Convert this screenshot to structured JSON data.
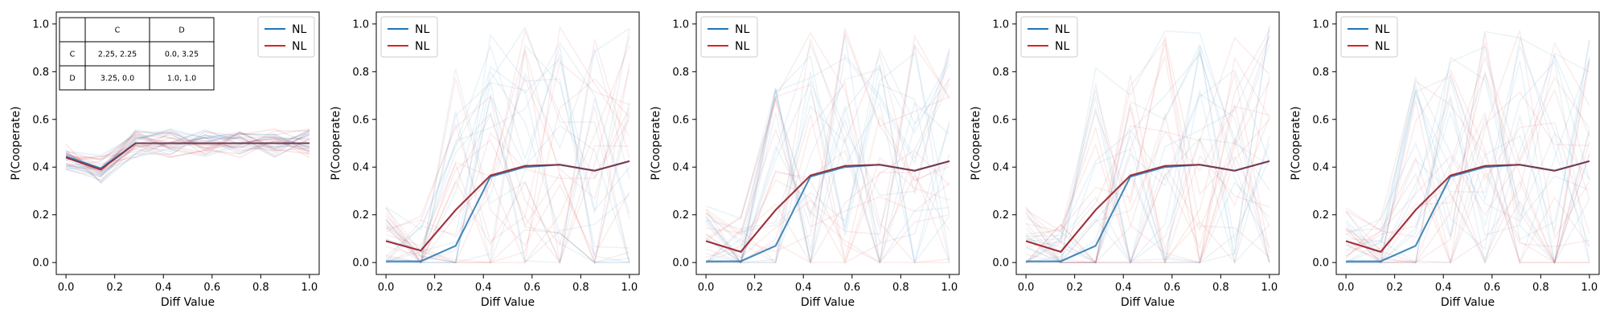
{
  "chart_data": [
    {
      "type": "line",
      "xlabel": "Diff Value",
      "ylabel": "P(Cooperate)",
      "xlim": [
        -0.04,
        1.04
      ],
      "ylim": [
        -0.05,
        1.05
      ],
      "xticks": [
        "0.0",
        "0.2",
        "0.4",
        "0.6",
        "0.8",
        "1.0"
      ],
      "yticks": [
        "0.0",
        "0.2",
        "0.4",
        "0.6",
        "0.8",
        "1.0"
      ],
      "x": [
        0.0,
        0.143,
        0.286,
        0.429,
        0.571,
        0.714,
        0.857,
        1.0
      ],
      "legend_position": "top-right",
      "legend": [
        {
          "name": "NL",
          "color": "#1f77b4"
        },
        {
          "name": "NL",
          "color": "#d62728"
        }
      ],
      "series": [
        {
          "color": "#d62728",
          "values": [
            0.44,
            0.39,
            0.5,
            0.5,
            0.5,
            0.5,
            0.5,
            0.5
          ]
        },
        {
          "color": "#1f77b4",
          "values": [
            0.445,
            0.395,
            0.5,
            0.5,
            0.5,
            0.5,
            0.5,
            0.5
          ]
        }
      ],
      "payoff_table": {
        "col_headers": [
          "",
          "C",
          "D"
        ],
        "rows": [
          {
            "label": "C",
            "cells": [
              "2.25, 2.25",
              "0.0, 3.25"
            ]
          },
          {
            "label": "D",
            "cells": [
              "3.25, 0.0",
              "1.0, 1.0"
            ]
          }
        ]
      }
    },
    {
      "type": "line",
      "xlabel": "Diff Value",
      "ylabel": "P(Cooperate)",
      "xlim": [
        -0.04,
        1.04
      ],
      "ylim": [
        -0.05,
        1.05
      ],
      "xticks": [
        "0.0",
        "0.2",
        "0.4",
        "0.6",
        "0.8",
        "1.0"
      ],
      "yticks": [
        "0.0",
        "0.2",
        "0.4",
        "0.6",
        "0.8",
        "1.0"
      ],
      "x": [
        0.0,
        0.143,
        0.286,
        0.429,
        0.571,
        0.714,
        0.857,
        1.0
      ],
      "legend_position": "top-left",
      "legend": [
        {
          "name": "NL",
          "color": "#1f77b4"
        },
        {
          "name": "NL",
          "color": "#d62728"
        }
      ],
      "series": [
        {
          "color": "#d62728",
          "values": [
            0.09,
            0.05,
            0.22,
            0.365,
            0.405,
            0.41,
            0.385,
            0.425
          ]
        },
        {
          "color": "#1f77b4",
          "values": [
            0.005,
            0.005,
            0.07,
            0.36,
            0.4,
            0.41,
            0.385,
            0.425
          ]
        }
      ]
    },
    {
      "type": "line",
      "xlabel": "Diff Value",
      "ylabel": "P(Cooperate)",
      "xlim": [
        -0.04,
        1.04
      ],
      "ylim": [
        -0.05,
        1.05
      ],
      "xticks": [
        "0.0",
        "0.2",
        "0.4",
        "0.6",
        "0.8",
        "1.0"
      ],
      "yticks": [
        "0.0",
        "0.2",
        "0.4",
        "0.6",
        "0.8",
        "1.0"
      ],
      "x": [
        0.0,
        0.143,
        0.286,
        0.429,
        0.571,
        0.714,
        0.857,
        1.0
      ],
      "legend_position": "top-left",
      "legend": [
        {
          "name": "NL",
          "color": "#1f77b4"
        },
        {
          "name": "NL",
          "color": "#d62728"
        }
      ],
      "series": [
        {
          "color": "#d62728",
          "values": [
            0.09,
            0.045,
            0.22,
            0.365,
            0.405,
            0.41,
            0.385,
            0.425
          ]
        },
        {
          "color": "#1f77b4",
          "values": [
            0.005,
            0.005,
            0.07,
            0.36,
            0.4,
            0.41,
            0.385,
            0.425
          ]
        }
      ]
    },
    {
      "type": "line",
      "xlabel": "Diff Value",
      "ylabel": "P(Cooperate)",
      "xlim": [
        -0.04,
        1.04
      ],
      "ylim": [
        -0.05,
        1.05
      ],
      "xticks": [
        "0.0",
        "0.2",
        "0.4",
        "0.6",
        "0.8",
        "1.0"
      ],
      "yticks": [
        "0.0",
        "0.2",
        "0.4",
        "0.6",
        "0.8",
        "1.0"
      ],
      "x": [
        0.0,
        0.143,
        0.286,
        0.429,
        0.571,
        0.714,
        0.857,
        1.0
      ],
      "legend_position": "top-left",
      "legend": [
        {
          "name": "NL",
          "color": "#1f77b4"
        },
        {
          "name": "NL",
          "color": "#d62728"
        }
      ],
      "series": [
        {
          "color": "#d62728",
          "values": [
            0.09,
            0.045,
            0.22,
            0.365,
            0.405,
            0.41,
            0.385,
            0.425
          ]
        },
        {
          "color": "#1f77b4",
          "values": [
            0.005,
            0.005,
            0.07,
            0.36,
            0.4,
            0.41,
            0.385,
            0.425
          ]
        }
      ]
    },
    {
      "type": "line",
      "xlabel": "Diff Value",
      "ylabel": "P(Cooperate)",
      "xlim": [
        -0.04,
        1.04
      ],
      "ylim": [
        -0.05,
        1.05
      ],
      "xticks": [
        "0.0",
        "0.2",
        "0.4",
        "0.6",
        "0.8",
        "1.0"
      ],
      "yticks": [
        "0.0",
        "0.2",
        "0.4",
        "0.6",
        "0.8",
        "1.0"
      ],
      "x": [
        0.0,
        0.143,
        0.286,
        0.429,
        0.571,
        0.714,
        0.857,
        1.0
      ],
      "legend_position": "top-left",
      "legend": [
        {
          "name": "NL",
          "color": "#1f77b4"
        },
        {
          "name": "NL",
          "color": "#d62728"
        }
      ],
      "series": [
        {
          "color": "#d62728",
          "values": [
            0.09,
            0.045,
            0.22,
            0.365,
            0.405,
            0.41,
            0.385,
            0.425
          ]
        },
        {
          "color": "#1f77b4",
          "values": [
            0.005,
            0.005,
            0.07,
            0.36,
            0.4,
            0.41,
            0.385,
            0.425
          ]
        }
      ]
    }
  ]
}
